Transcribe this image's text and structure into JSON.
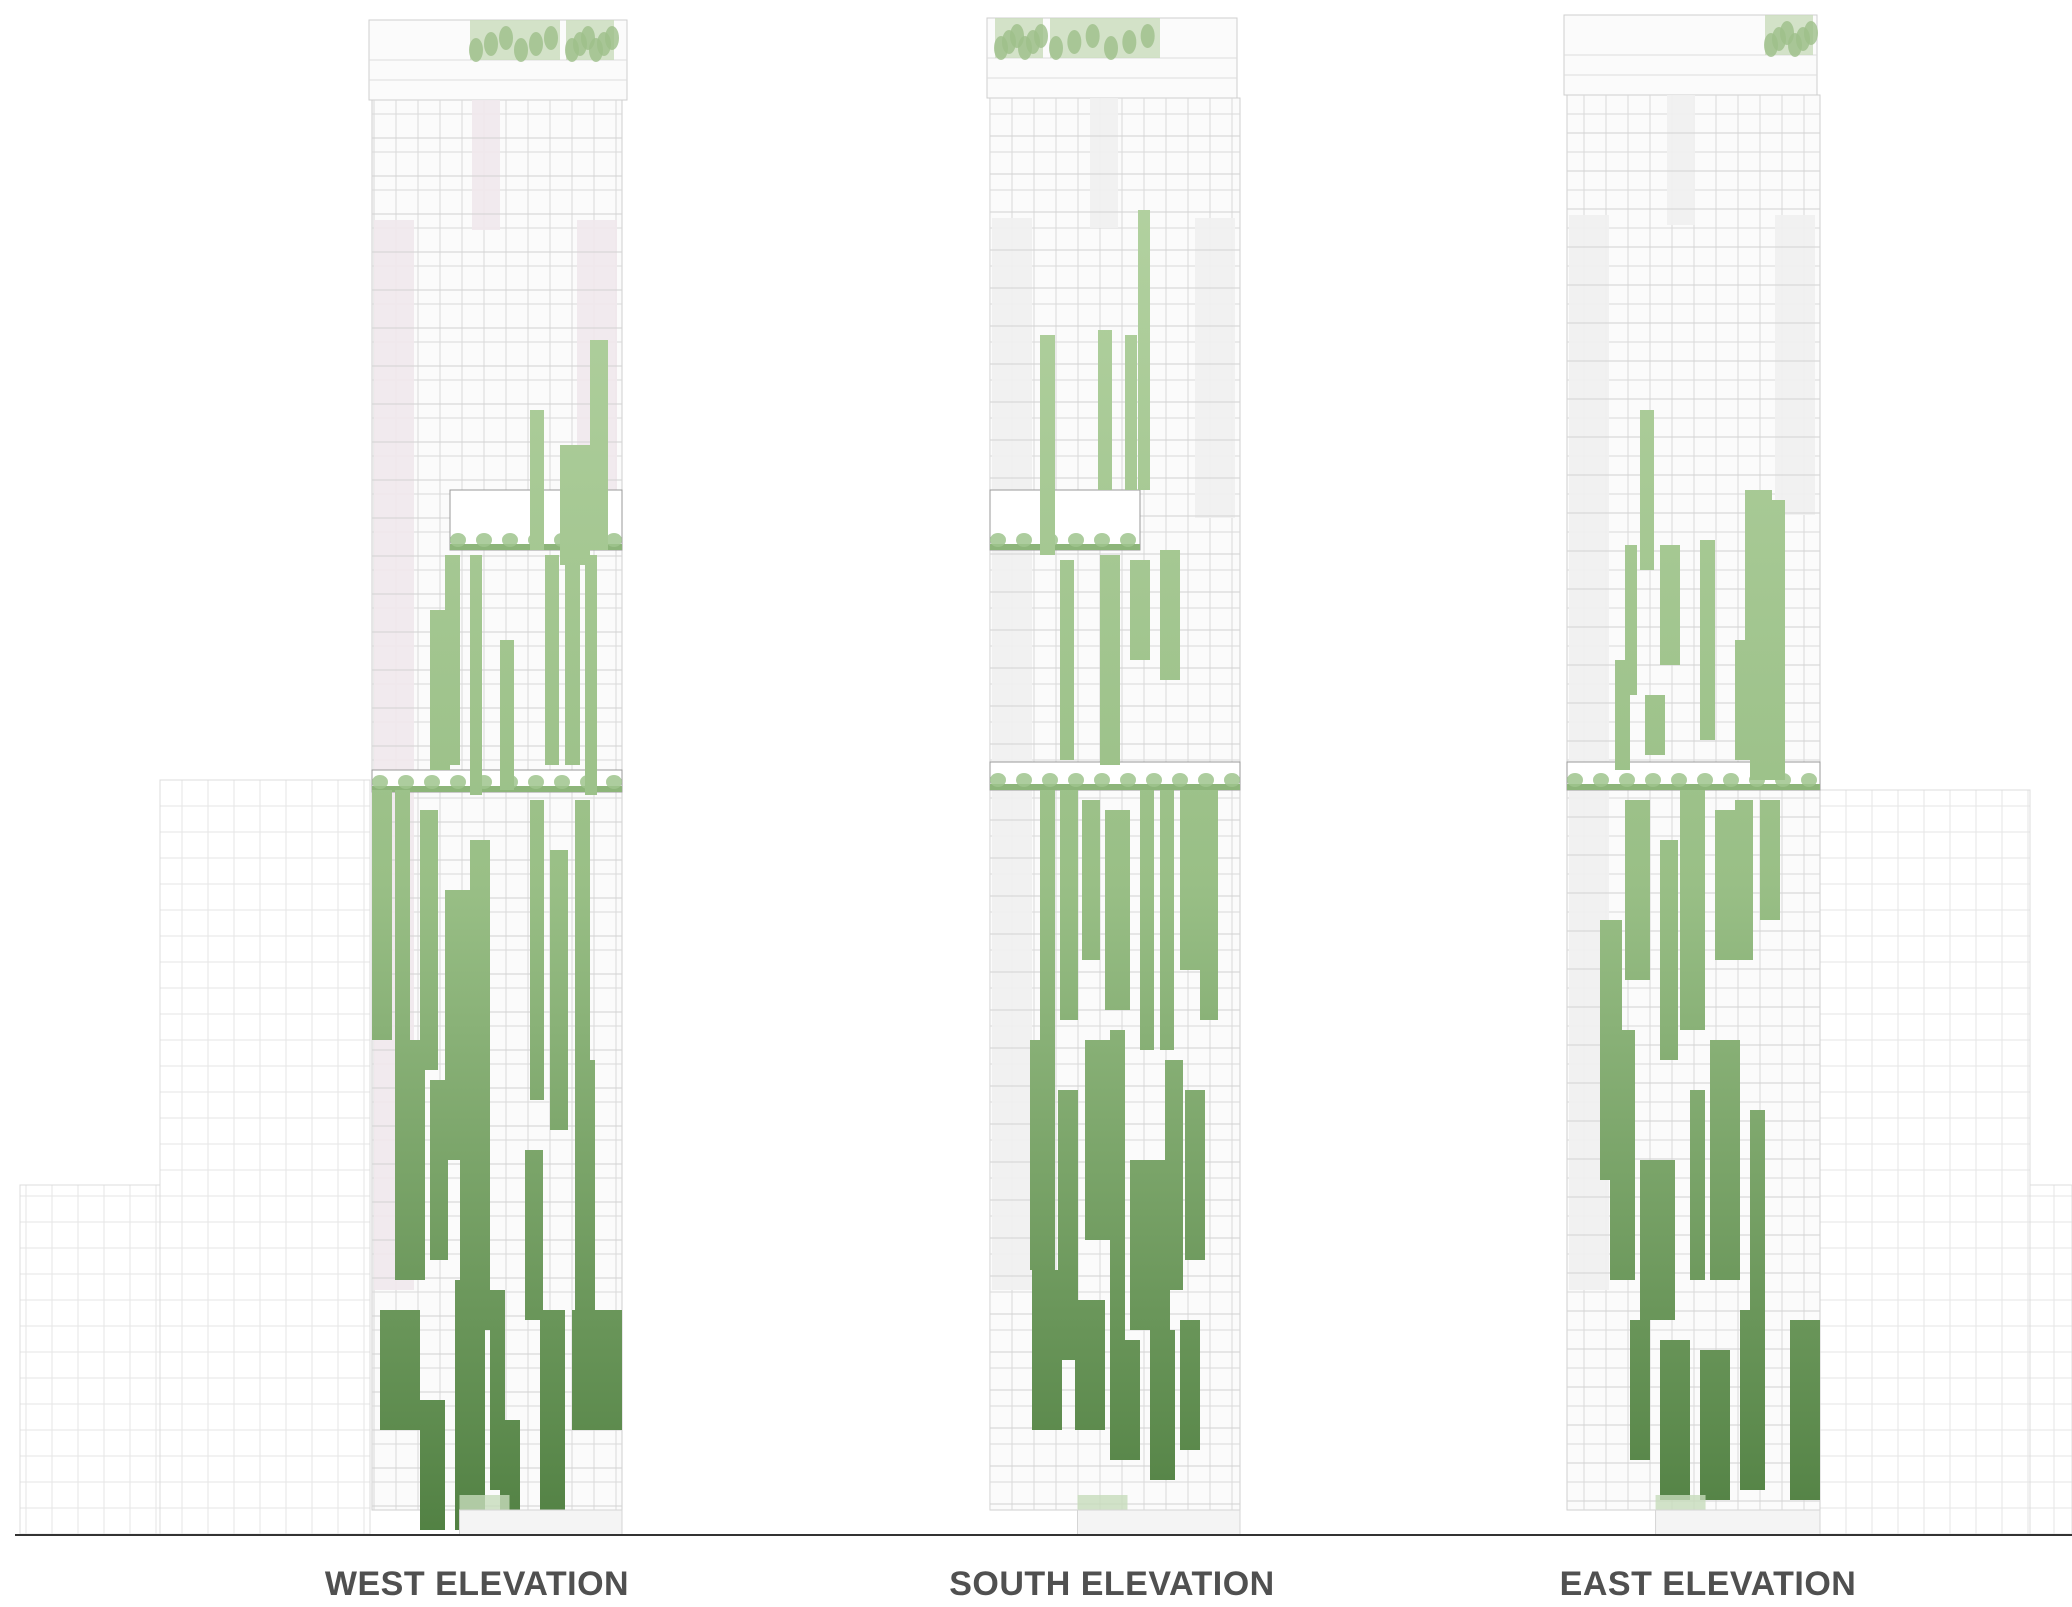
{
  "captions": {
    "west": "WEST ELEVATION",
    "south": "SOUTH ELEVATION",
    "east": "EAST ELEVATION"
  },
  "colors": {
    "background": "#ffffff",
    "ground_line": "#333333",
    "facade_fill": "#fbfbfb",
    "facade_line": "#d7d7d7",
    "context_line": "#e4e4e4",
    "panel_shade": "#efe9ec",
    "greenery_light": "#aecd9c",
    "greenery_mid": "#8eb57d",
    "greenery_dark": "#4f7d40",
    "caption_text": "#505050"
  }
}
